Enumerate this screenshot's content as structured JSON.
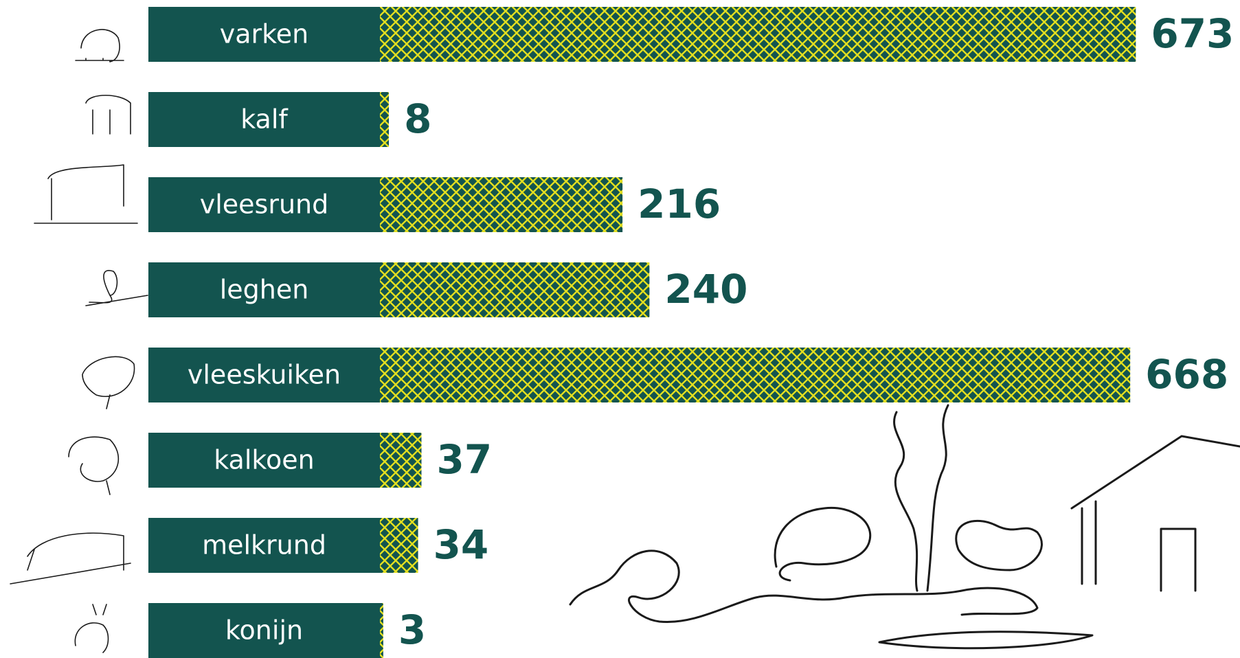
{
  "chart_data": {
    "type": "bar",
    "categories": [
      "varken",
      "kalf",
      "vleesrund",
      "leghen",
      "vleeskuiken",
      "kalkoen",
      "melkrund",
      "konijn"
    ],
    "values": [
      673,
      8,
      216,
      240,
      668,
      37,
      34,
      3
    ],
    "color": "#13544f",
    "pattern_color": "#e3df1f"
  }
}
